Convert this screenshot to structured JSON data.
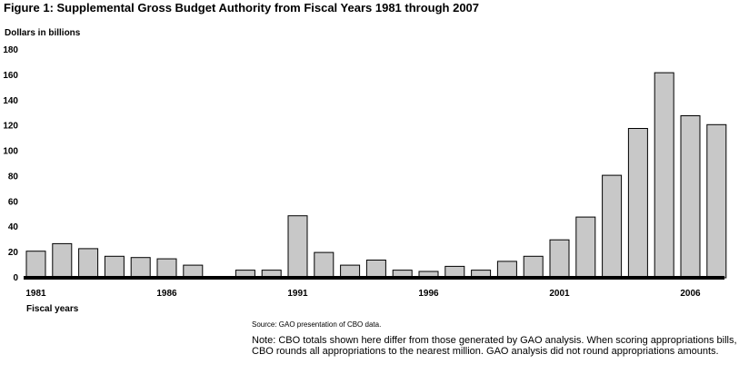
{
  "chart_data": {
    "type": "bar",
    "title": "Figure 1: Supplemental Gross Budget Authority from Fiscal Years 1981 through 2007",
    "ylabel": "Dollars in billions",
    "xlabel": "Fiscal years",
    "ylim": [
      0,
      180
    ],
    "yticks": [
      0,
      20,
      40,
      60,
      80,
      100,
      120,
      140,
      160,
      180
    ],
    "xtick_labels": [
      "1981",
      "1986",
      "1991",
      "1996",
      "2001",
      "2006"
    ],
    "categories": [
      "1981",
      "1982",
      "1983",
      "1984",
      "1985",
      "1986",
      "1987",
      "1988",
      "1989",
      "1990",
      "1991",
      "1992",
      "1993",
      "1994",
      "1995",
      "1996",
      "1997",
      "1998",
      "1999",
      "2000",
      "2001",
      "2002",
      "2003",
      "2004",
      "2005",
      "2006",
      "2007"
    ],
    "values": [
      21,
      27,
      23,
      17,
      16,
      15,
      10,
      0,
      6,
      6,
      49,
      20,
      10,
      14,
      6,
      5,
      9,
      6,
      13,
      17,
      30,
      48,
      81,
      118,
      162,
      128,
      121
    ],
    "bar_color": "#c8c8c8",
    "grid": false
  },
  "source": "Source: GAO presentation of CBO data.",
  "note": "Note: CBO totals shown here differ from those generated by GAO analysis. When scoring appropriations bills, CBO rounds all appropriations to the nearest million. GAO analysis did not round appropriations amounts."
}
